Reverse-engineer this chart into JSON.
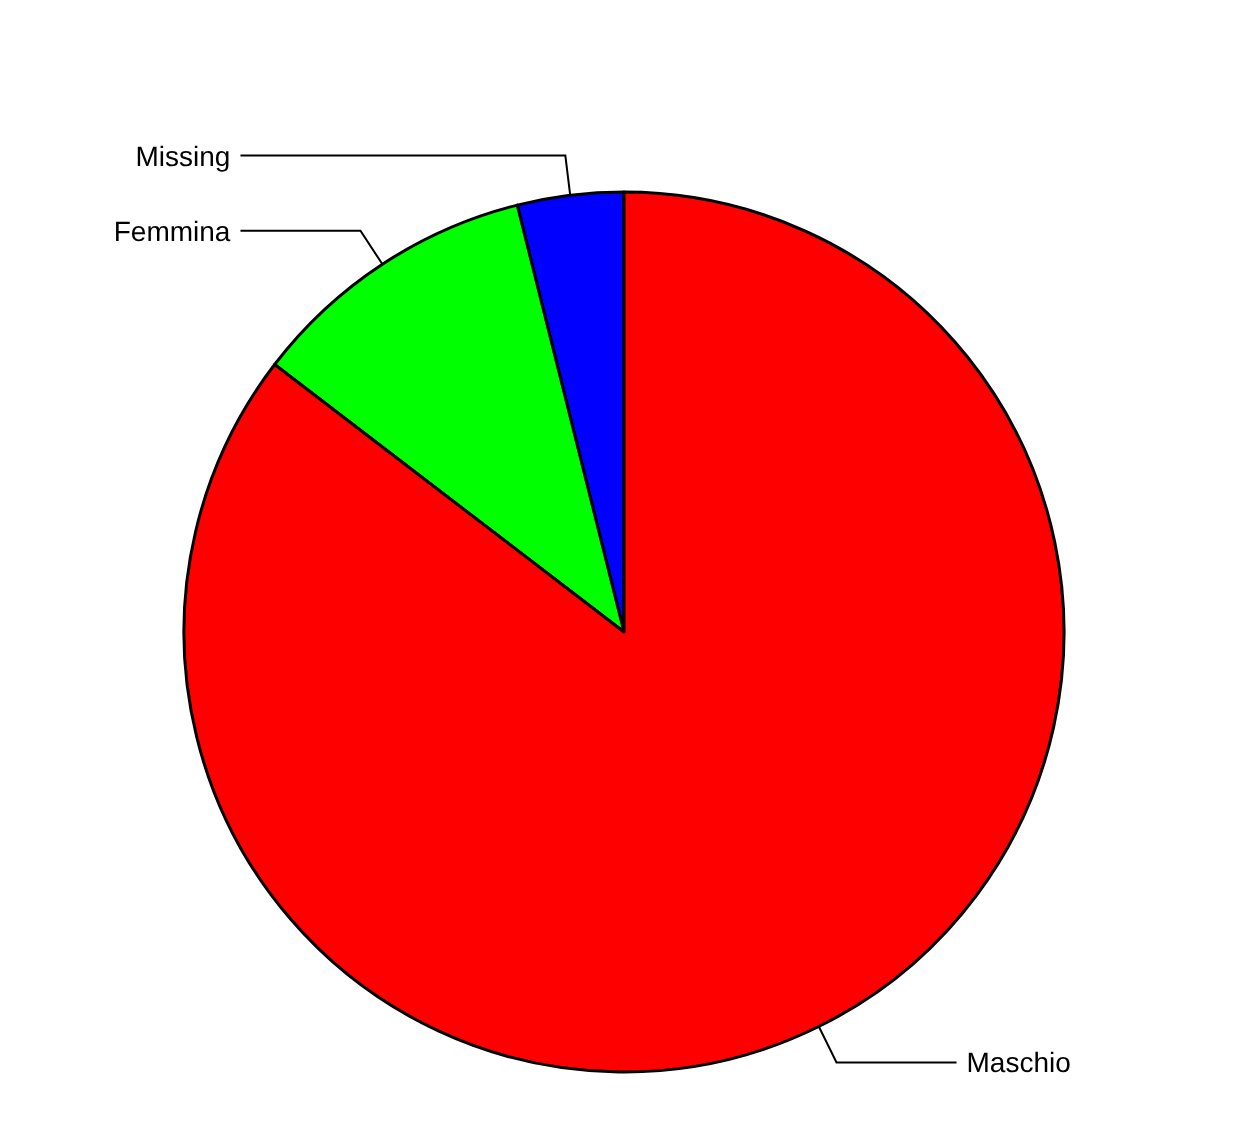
{
  "chart_data": {
    "type": "pie",
    "categories": [
      "Missing",
      "Femmina",
      "Maschio"
    ],
    "values": [
      3.9,
      10.7,
      85.4
    ],
    "colors": [
      "#0000ff",
      "#00ff00",
      "#ff0000"
    ]
  }
}
